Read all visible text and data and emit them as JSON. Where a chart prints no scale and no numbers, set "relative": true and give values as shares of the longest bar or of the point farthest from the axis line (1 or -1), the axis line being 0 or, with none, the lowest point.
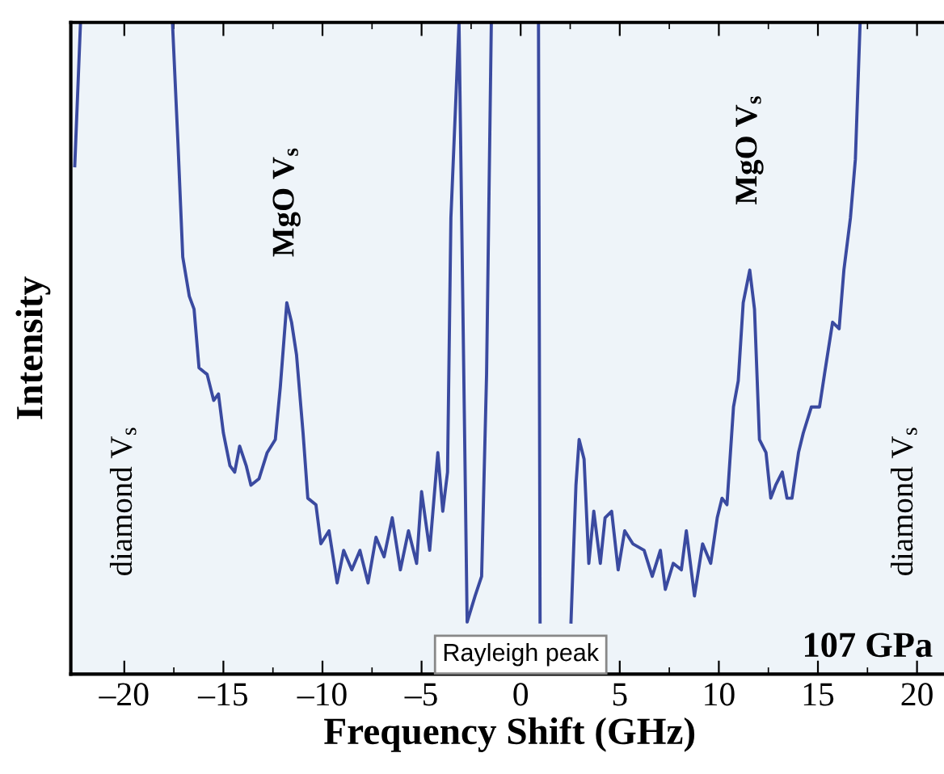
{
  "chart_data": {
    "type": "line",
    "relative": true,
    "xlabel": "Frequency Shift (GHz)",
    "ylabel": "Intensity",
    "xlim": [
      -22.7,
      21.6
    ],
    "xticks": [
      {
        "value": -20,
        "label": "–20"
      },
      {
        "value": -15,
        "label": "–15"
      },
      {
        "value": -10,
        "label": "–10"
      },
      {
        "value": -5,
        "label": "–5"
      },
      0,
      5,
      10,
      15,
      20
    ],
    "tick_labels": "x",
    "grid": false,
    "legend": false,
    "line_style": "solid",
    "marker": "none",
    "annotations": [
      "MgO V$_{s}$",
      "MgO V$_{s}$",
      "diamond V$_{s}$",
      "diamond V$_{s}$",
      "107 GPa",
      "Rayleigh peak"
    ],
    "series": [
      {
        "color": "#3a4aa0",
        "x": [
          -22.5,
          -22.21,
          -20,
          -17.57,
          -17.3,
          -17.05,
          -16.72,
          -16.48,
          -16.23,
          -15.82,
          -15.49,
          -15.25,
          -15.0,
          -14.67,
          -14.43,
          -14.18,
          -13.85,
          -13.61,
          -13.2,
          -12.79,
          -12.38,
          -12.13,
          -11.8,
          -11.56,
          -11.31,
          -10.98,
          -10.74,
          -10.33,
          -10.08,
          -9.67,
          -9.26,
          -8.93,
          -8.52,
          -8.11,
          -7.7,
          -7.3,
          -6.89,
          -6.48,
          -6.07,
          -5.66,
          -5.25,
          -5.0,
          -4.59,
          -4.18,
          -3.93,
          -3.69,
          -3.52,
          -3.11,
          -2.7,
          -2.3,
          -1.97,
          -1.72,
          -1.48,
          0,
          0.9,
          0.98,
          2,
          2.54,
          2.79,
          2.95,
          3.2,
          3.44,
          3.69,
          4.02,
          4.26,
          4.59,
          4.92,
          5.25,
          5.66,
          6.23,
          6.64,
          7.05,
          7.3,
          7.7,
          8.11,
          8.36,
          8.77,
          9.18,
          9.59,
          9.92,
          10.16,
          10.41,
          10.74,
          10.98,
          11.23,
          11.56,
          11.8,
          12.05,
          12.38,
          12.62,
          12.87,
          13.2,
          13.44,
          13.69,
          14.02,
          14.26,
          14.67,
          15.08,
          15.33,
          15.74,
          16.07,
          16.31,
          16.64,
          16.89,
          17.13
        ],
        "values": [
          0.78,
          1,
          null,
          1,
          0.82,
          0.64,
          0.58,
          0.56,
          0.47,
          0.46,
          0.42,
          0.43,
          0.37,
          0.32,
          0.31,
          0.35,
          0.32,
          0.29,
          0.3,
          0.34,
          0.36,
          0.44,
          0.57,
          0.54,
          0.49,
          0.37,
          0.27,
          0.26,
          0.2,
          0.22,
          0.14,
          0.19,
          0.16,
          0.19,
          0.14,
          0.21,
          0.18,
          0.24,
          0.16,
          0.22,
          0.17,
          0.28,
          0.19,
          0.34,
          0.25,
          0.31,
          0.7,
          1,
          0.08,
          0.12,
          0.15,
          0.46,
          1,
          null,
          1,
          0.08,
          null,
          0.08,
          0.29,
          0.36,
          0.33,
          0.17,
          0.25,
          0.17,
          0.24,
          0.25,
          0.16,
          0.22,
          0.2,
          0.19,
          0.15,
          0.19,
          0.13,
          0.17,
          0.16,
          0.22,
          0.12,
          0.2,
          0.17,
          0.24,
          0.27,
          0.26,
          0.41,
          0.45,
          0.57,
          0.62,
          0.56,
          0.36,
          0.34,
          0.27,
          0.29,
          0.31,
          0.27,
          0.27,
          0.34,
          0.37,
          0.41,
          0.41,
          0.46,
          0.54,
          0.53,
          0.62,
          0.7,
          0.79,
          1
        ]
      }
    ]
  }
}
